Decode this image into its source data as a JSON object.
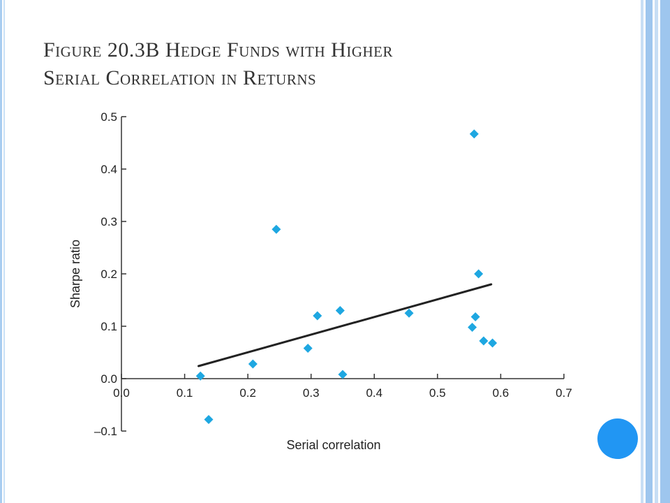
{
  "slide": {
    "title_line1": "Figure 20.3B Hedge Funds with Higher",
    "title_line2": "Serial Correlation in Returns"
  },
  "chart_data": {
    "type": "scatter",
    "title": "",
    "xlabel": "Serial correlation",
    "ylabel": "Sharpe ratio",
    "xlim": [
      0.0,
      0.7
    ],
    "ylim": [
      -0.1,
      0.5
    ],
    "x_ticks": [
      "0.0",
      "0.1",
      "0.2",
      "0.3",
      "0.4",
      "0.5",
      "0.6",
      "0.7"
    ],
    "y_ticks": [
      "–0.1",
      "0.0",
      "0.1",
      "0.2",
      "0.3",
      "0.4",
      "0.5"
    ],
    "grid": false,
    "marker_color": "#1ea7e1",
    "line_color": "#222222",
    "points": [
      {
        "x": 0.125,
        "y": 0.005
      },
      {
        "x": 0.138,
        "y": -0.078
      },
      {
        "x": 0.208,
        "y": 0.028
      },
      {
        "x": 0.245,
        "y": 0.285
      },
      {
        "x": 0.295,
        "y": 0.058
      },
      {
        "x": 0.31,
        "y": 0.12
      },
      {
        "x": 0.346,
        "y": 0.13
      },
      {
        "x": 0.35,
        "y": 0.008
      },
      {
        "x": 0.455,
        "y": 0.125
      },
      {
        "x": 0.555,
        "y": 0.098
      },
      {
        "x": 0.558,
        "y": 0.467
      },
      {
        "x": 0.56,
        "y": 0.118
      },
      {
        "x": 0.565,
        "y": 0.2
      },
      {
        "x": 0.573,
        "y": 0.072
      },
      {
        "x": 0.587,
        "y": 0.068
      }
    ],
    "trend_line": {
      "x": [
        0.122,
        0.585
      ],
      "y": [
        0.024,
        0.18
      ]
    }
  }
}
